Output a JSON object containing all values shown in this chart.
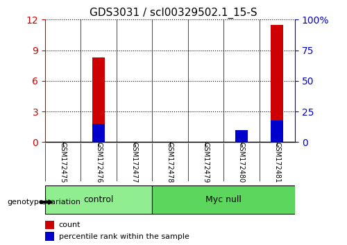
{
  "title": "GDS3031 / scl00329502.1_15-S",
  "samples": [
    "GSM172475",
    "GSM172476",
    "GSM172477",
    "GSM172478",
    "GSM172479",
    "GSM172480",
    "GSM172481"
  ],
  "counts": [
    0,
    8.3,
    0,
    0,
    0,
    1.1,
    11.5
  ],
  "percentile_ranks": [
    0,
    1.8,
    0,
    0,
    0,
    1.2,
    2.1
  ],
  "groups": [
    {
      "label": "control",
      "start": 0,
      "end": 3,
      "color": "#90EE90"
    },
    {
      "label": "Myc null",
      "start": 3,
      "end": 7,
      "color": "#5CD65C"
    }
  ],
  "ylim_left": [
    0,
    12
  ],
  "ylim_right": [
    0,
    100
  ],
  "yticks_left": [
    0,
    3,
    6,
    9,
    12
  ],
  "yticks_right": [
    0,
    25,
    50,
    75,
    100
  ],
  "bar_color_count": "#CC0000",
  "bar_color_pct": "#0000CC",
  "bar_width": 0.35,
  "bg_color": "#FFFFFF",
  "plot_bg": "#FFFFFF",
  "label_color_left": "#CC0000",
  "label_color_right": "#0000CC",
  "tick_label_bg": "#C8C8C8",
  "legend_count": "count",
  "legend_pct": "percentile rank within the sample",
  "genotype_label": "genotype/variation",
  "grid_style": "dotted"
}
